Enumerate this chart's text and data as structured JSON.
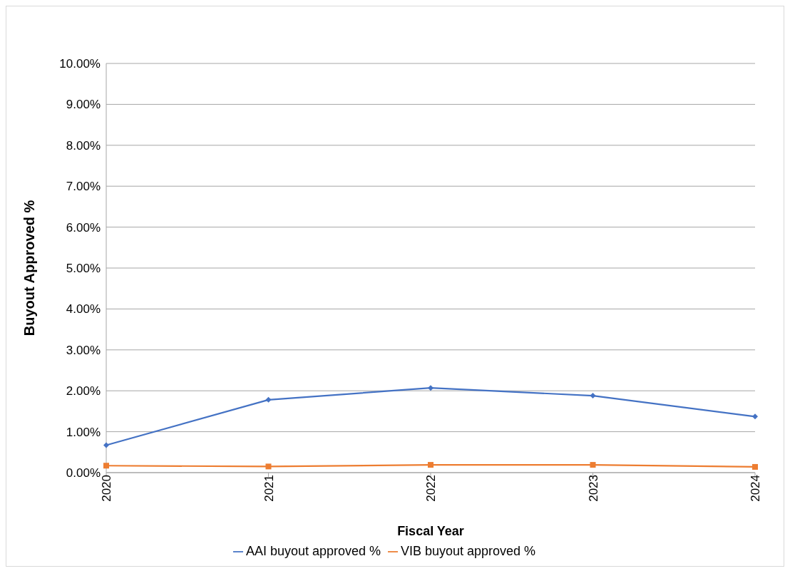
{
  "chart_data": {
    "type": "line",
    "xlabel": "Fiscal Year",
    "ylabel": "Buyout Approved %",
    "categories": [
      "2020",
      "2021",
      "2022",
      "2023",
      "2024"
    ],
    "series": [
      {
        "name": "AAI buyout approved %",
        "color": "#4472c4",
        "marker": "diamond",
        "values": [
          0.67,
          1.78,
          2.07,
          1.88,
          1.37
        ]
      },
      {
        "name": "VIB buyout approved %",
        "color": "#ed7d31",
        "marker": "square",
        "values": [
          0.17,
          0.15,
          0.19,
          0.19,
          0.14
        ]
      }
    ],
    "ylim": [
      0,
      10
    ],
    "yticks": [
      {
        "value": 0,
        "label": "0.00%"
      },
      {
        "value": 1,
        "label": "1.00%"
      },
      {
        "value": 2,
        "label": "2.00%"
      },
      {
        "value": 3,
        "label": "3.00%"
      },
      {
        "value": 4,
        "label": "4.00%"
      },
      {
        "value": 5,
        "label": "5.00%"
      },
      {
        "value": 6,
        "label": "6.00%"
      },
      {
        "value": 7,
        "label": "7.00%"
      },
      {
        "value": 8,
        "label": "8.00%"
      },
      {
        "value": 9,
        "label": "9.00%"
      },
      {
        "value": 10,
        "label": "10.00%"
      }
    ],
    "grid": "y",
    "legend": "bottom",
    "line_style": "solid"
  }
}
